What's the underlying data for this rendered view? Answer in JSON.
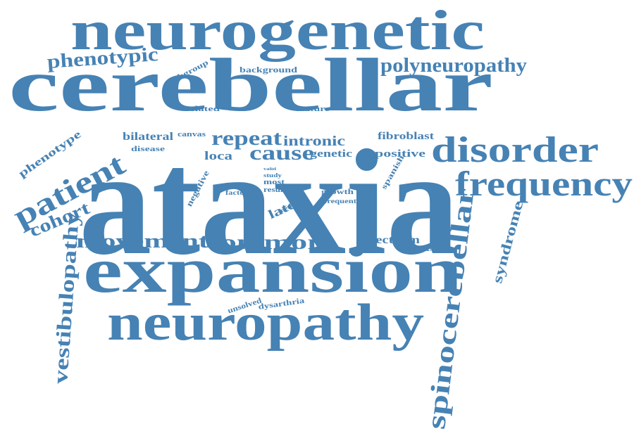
{
  "word_color": "#4682b4",
  "background_color": "#ffffff",
  "words": [
    {
      "key": "ataxia",
      "text": "ataxia"
    },
    {
      "key": "cerebellar",
      "text": "cerebellar"
    },
    {
      "key": "neurogenetic",
      "text": "neurogenetic"
    },
    {
      "key": "expansion",
      "text": "expansion"
    },
    {
      "key": "neuropathy",
      "text": "neuropathy"
    },
    {
      "key": "disorder",
      "text": "disorder"
    },
    {
      "key": "frequency",
      "text": "frequency"
    },
    {
      "key": "patient",
      "text": "patient"
    },
    {
      "key": "spinocerebellar",
      "text": "spinocerebellar"
    },
    {
      "key": "vestibulopathy",
      "text": "vestibulopathy"
    },
    {
      "key": "polyneuropathy",
      "text": "polyneuropathy"
    },
    {
      "key": "phenotypic",
      "text": "phenotypic"
    },
    {
      "key": "movement",
      "text": "movement"
    },
    {
      "key": "common",
      "text": "common"
    },
    {
      "key": "repeat",
      "text": "repeat"
    },
    {
      "key": "cause",
      "text": "cause"
    },
    {
      "key": "cohort",
      "text": "cohort"
    },
    {
      "key": "syndrome",
      "text": "syndrome"
    },
    {
      "key": "phenotype",
      "text": "phenotype"
    },
    {
      "key": "bilateral",
      "text": "bilateral"
    },
    {
      "key": "intronic",
      "text": "intronic"
    },
    {
      "key": "fibroblast",
      "text": "fibroblast"
    },
    {
      "key": "positive",
      "text": "positive"
    },
    {
      "key": "genetic",
      "text": "genetic"
    },
    {
      "key": "spectrum",
      "text": "spectrum"
    },
    {
      "key": "loca",
      "text": "loca"
    },
    {
      "key": "late",
      "text": "late"
    },
    {
      "key": "background",
      "text": "background"
    },
    {
      "key": "subgroup",
      "text": "subgroup"
    },
    {
      "key": "related",
      "text": "related"
    },
    {
      "key": "feature",
      "text": "feature"
    },
    {
      "key": "disease",
      "text": "disease"
    },
    {
      "key": "canvas",
      "text": "canvas"
    },
    {
      "key": "negative",
      "text": "negative"
    },
    {
      "key": "growth",
      "text": "growth"
    },
    {
      "key": "frequent",
      "text": "frequent"
    },
    {
      "key": "factor",
      "text": "factor"
    },
    {
      "key": "most",
      "text": "most"
    },
    {
      "key": "result",
      "text": "result"
    },
    {
      "key": "study",
      "text": "study"
    },
    {
      "key": "valid",
      "text": "valid"
    },
    {
      "key": "method",
      "text": "method"
    },
    {
      "key": "spanish",
      "text": "spanish"
    },
    {
      "key": "conclusion",
      "text": "conclusion"
    },
    {
      "key": "unsolved",
      "text": "unsolved"
    },
    {
      "key": "dysarthria",
      "text": "dysarthria"
    }
  ]
}
